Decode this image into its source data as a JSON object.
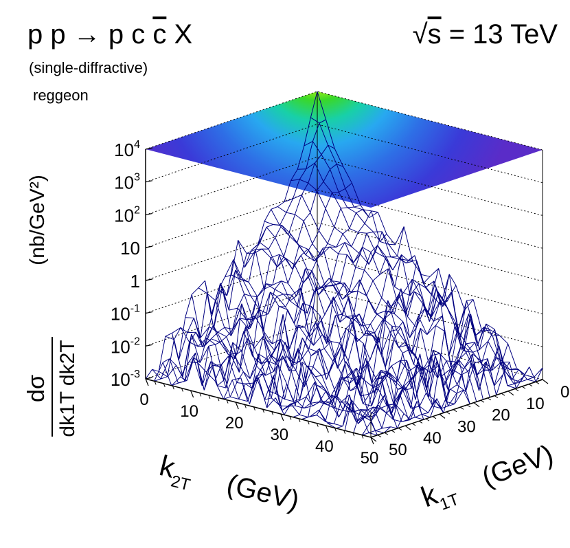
{
  "header": {
    "process": "p p → p c c̄ X",
    "process_parts": {
      "lhs": "p p",
      "arrow": "→",
      "rhs_a": "p c",
      "rhs_bar": "c",
      "rhs_b": "X"
    },
    "subtitle": "(single-diffractive)",
    "model": "reggeon",
    "energy_label": "s = 13 TeV",
    "energy_sqrt": "√",
    "energy_under": "s",
    "energy_rest": " = 13 TeV"
  },
  "chart_data": {
    "type": "surface-lego",
    "title": "p p → p c c̄ X",
    "subtitle": "(single-diffractive)",
    "annotation": "reggeon",
    "energy": "√s = 13 TeV",
    "x_axis": {
      "name": "k2T",
      "label_main": "k",
      "label_sub": "2T",
      "unit": "(GeV)",
      "range": [
        0,
        50
      ],
      "ticks": [
        "0",
        "10",
        "20",
        "30",
        "40",
        "50"
      ]
    },
    "y_axis": {
      "name": "k1T",
      "label_main": "k",
      "label_sub": "1T",
      "unit": "(GeV)",
      "range": [
        0,
        50
      ],
      "ticks": [
        "0",
        "10",
        "20",
        "30",
        "40",
        "50"
      ]
    },
    "z_axis": {
      "label": "dσ / dk1T dk2T (nb/GeV²)",
      "label_num": "dσ",
      "label_den": "dk1T dk2T",
      "label_unit": "(nb/GeV²)",
      "scale": "log",
      "range": [
        0.001,
        10000
      ],
      "ticks": [
        {
          "base": "10",
          "exp": "4"
        },
        {
          "base": "10",
          "exp": "3"
        },
        {
          "base": "10",
          "exp": "2"
        },
        {
          "base": "10",
          "exp": ""
        },
        {
          "base": "1",
          "exp": ""
        },
        {
          "base": "10",
          "exp": "-1"
        },
        {
          "base": "10",
          "exp": "-2"
        },
        {
          "base": "10",
          "exp": "-3"
        }
      ]
    },
    "surface_profile": {
      "peak_at": [
        0,
        0
      ],
      "peak_value": 10000,
      "along_axes_k": [
        0,
        5,
        10,
        20,
        30,
        40,
        50
      ],
      "along_axes_value": [
        10000,
        100,
        10,
        1,
        0.1,
        0.01,
        0.001
      ],
      "diagonal_k": [
        0,
        10,
        20,
        30,
        40,
        50
      ],
      "diagonal_value": [
        10000,
        1,
        0.05,
        0.005,
        0.002,
        0.001
      ]
    },
    "colors": {
      "mesh": "#000080",
      "frame": "#000000",
      "grid": "#000000"
    }
  }
}
